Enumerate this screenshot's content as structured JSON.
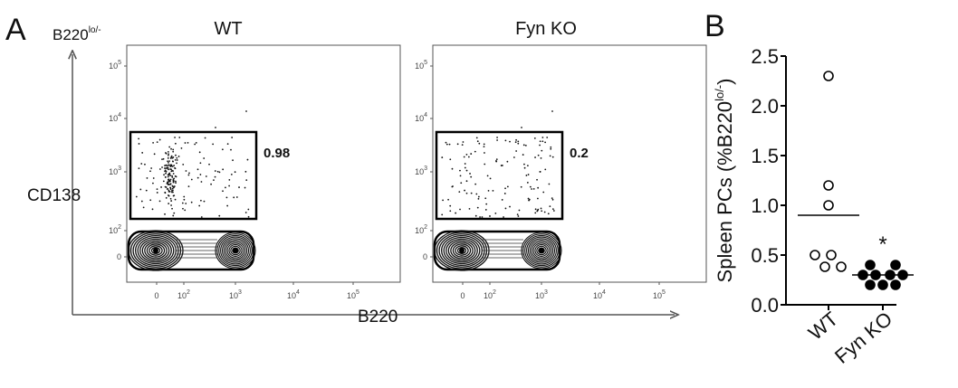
{
  "panel_a": {
    "label": "A",
    "gate_name_prefix": "B220",
    "gate_name_sup": "lo/-",
    "y_axis_label": "CD138",
    "x_axis_label": "B220",
    "y_tick_labels": [
      "10",
      "10",
      "10",
      "10",
      "0"
    ],
    "y_tick_exps": [
      "5",
      "4",
      "3",
      "2",
      ""
    ],
    "x_tick_labels": [
      "0",
      "10",
      "10",
      "10",
      "10"
    ],
    "x_tick_exps": [
      "",
      "2",
      "3",
      "4",
      "5"
    ],
    "plots": [
      {
        "title": "WT",
        "gate_value": "0.98"
      },
      {
        "title": "Fyn KO",
        "gate_value": "0.2"
      }
    ]
  },
  "panel_b": {
    "label": "B",
    "significance": "*"
  },
  "chart_data": [
    {
      "type": "scatter",
      "title": "",
      "ylabel_main": "Spleen PCs (%B220",
      "ylabel_sup": "lo/-",
      "ylabel_close": ")",
      "categories": [
        "WT",
        "Fyn KO"
      ],
      "ylim": [
        0.0,
        2.5
      ],
      "yticks": [
        "0.0",
        "0.5",
        "1.0",
        "1.5",
        "2.0",
        "2.5"
      ],
      "series": [
        {
          "category": "WT",
          "marker": "open-circle",
          "values": [
            2.3,
            1.2,
            1.0,
            0.5,
            0.5,
            0.4,
            0.4
          ],
          "mean": 0.9
        },
        {
          "category": "Fyn KO",
          "marker": "filled-circle",
          "values": [
            0.4,
            0.4,
            0.3,
            0.3,
            0.3,
            0.3,
            0.2,
            0.2,
            0.2
          ],
          "mean": 0.3
        }
      ]
    },
    {
      "type": "scatter",
      "description": "flow cytometry contour/dot plots, CD138 vs B220 (log)",
      "plots": [
        {
          "name": "WT",
          "gate": "B220lo/- CD138+",
          "gate_percent": 0.98
        },
        {
          "name": "Fyn KO",
          "gate": "B220lo/- CD138+",
          "gate_percent": 0.2
        }
      ]
    }
  ]
}
